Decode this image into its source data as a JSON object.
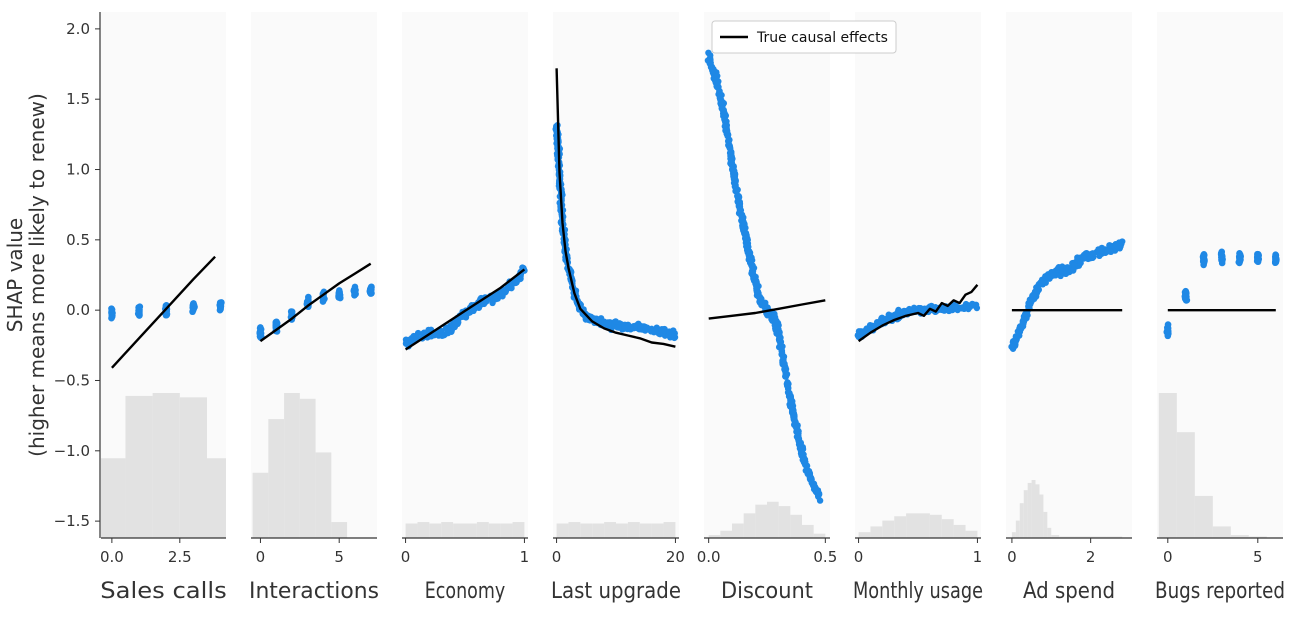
{
  "chart_data": {
    "type": "scatter",
    "title": "",
    "ylabel_lines": [
      "SHAP value",
      "(higher means more likely to renew)"
    ],
    "ylim": [
      -1.62,
      2.12
    ],
    "yticks": [
      2.0,
      1.5,
      1.0,
      0.5,
      0.0,
      -0.5,
      -1.0,
      -1.5
    ],
    "ytick_labels": [
      "2.0",
      "1.5",
      "1.0",
      "0.5",
      "0.0",
      "−0.5",
      "−1.0",
      "−1.5"
    ],
    "legend": {
      "label": "True causal effects",
      "location": "top"
    },
    "colors": {
      "points": "#1f88e5",
      "causal_line": "#000000",
      "histogram": "#e2e2e2",
      "panel_bg": "#fafafa",
      "axis": "#333333"
    },
    "panels": [
      {
        "feature": "Sales calls",
        "xlim": [
          -0.4,
          4.2
        ],
        "xticks": [
          0,
          2.5
        ],
        "xtick_labels": [
          "0.0",
          "2.5"
        ],
        "hist_edges": [
          -0.5,
          0.5,
          1.5,
          2.5,
          3.5,
          4.5
        ],
        "hist_heights": [
          0.55,
          0.98,
          1.0,
          0.97,
          0.55
        ],
        "points": [
          [
            0,
            -0.02
          ],
          [
            1,
            -0.01
          ],
          [
            2,
            0.0
          ],
          [
            3,
            0.02
          ],
          [
            4,
            0.04
          ]
        ],
        "point_style": "clusters",
        "causal": [
          [
            0,
            -0.41
          ],
          [
            1,
            -0.2
          ],
          [
            2,
            0.01
          ],
          [
            3,
            0.22
          ],
          [
            3.8,
            0.38
          ]
        ]
      },
      {
        "feature": "Interactions",
        "xlim": [
          -0.6,
          7.4
        ],
        "xticks": [
          0,
          5
        ],
        "xtick_labels": [
          "0",
          "5"
        ],
        "hist_edges": [
          -0.5,
          0.5,
          1.5,
          2.5,
          3.5,
          4.5,
          5.5
        ],
        "hist_heights": [
          0.45,
          0.82,
          1.0,
          0.96,
          0.59,
          0.11
        ],
        "points": [
          [
            0,
            -0.17
          ],
          [
            1,
            -0.12
          ],
          [
            2,
            -0.04
          ],
          [
            3,
            0.05
          ],
          [
            4,
            0.09
          ],
          [
            5,
            0.11
          ],
          [
            6,
            0.13
          ],
          [
            7,
            0.14
          ]
        ],
        "point_style": "clusters",
        "causal": [
          [
            0,
            -0.22
          ],
          [
            1,
            -0.14
          ],
          [
            2,
            -0.06
          ],
          [
            3,
            0.03
          ],
          [
            4,
            0.11
          ],
          [
            5,
            0.19
          ],
          [
            6,
            0.26
          ],
          [
            7,
            0.33
          ]
        ]
      },
      {
        "feature": "Economy",
        "xlim": [
          -0.03,
          1.03
        ],
        "xticks": [
          0,
          1
        ],
        "xtick_labels": [
          "0",
          "1"
        ],
        "hist_edges": [
          0.0,
          0.1,
          0.2,
          0.3,
          0.4,
          0.5,
          0.6,
          0.7,
          0.8,
          0.9,
          1.0
        ],
        "hist_heights": [
          0.1,
          0.11,
          0.1,
          0.11,
          0.1,
          0.1,
          0.11,
          0.1,
          0.1,
          0.11
        ],
        "points": [
          [
            0,
            -0.24
          ],
          [
            0.1,
            -0.19
          ],
          [
            0.2,
            -0.17
          ],
          [
            0.3,
            -0.16
          ],
          [
            0.4,
            -0.12
          ],
          [
            0.45,
            -0.05
          ],
          [
            0.55,
            0.01
          ],
          [
            0.65,
            0.07
          ],
          [
            0.75,
            0.09
          ],
          [
            0.85,
            0.15
          ],
          [
            0.95,
            0.22
          ],
          [
            1.0,
            0.3
          ]
        ],
        "point_style": "band",
        "causal": [
          [
            0,
            -0.28
          ],
          [
            0.2,
            -0.17
          ],
          [
            0.4,
            -0.06
          ],
          [
            0.6,
            0.05
          ],
          [
            0.8,
            0.16
          ],
          [
            1.0,
            0.29
          ]
        ]
      },
      {
        "feature": "Last upgrade",
        "xlim": [
          -0.6,
          20.6
        ],
        "xticks": [
          0,
          20
        ],
        "xtick_labels": [
          "0",
          "20"
        ],
        "hist_edges": [
          0,
          2,
          4,
          6,
          8,
          10,
          12,
          14,
          16,
          18,
          20
        ],
        "hist_heights": [
          0.1,
          0.11,
          0.1,
          0.1,
          0.11,
          0.1,
          0.11,
          0.1,
          0.1,
          0.11
        ],
        "points": [
          [
            0,
            1.35
          ],
          [
            0.5,
            0.95
          ],
          [
            1,
            0.62
          ],
          [
            1.5,
            0.42
          ],
          [
            2,
            0.3
          ],
          [
            3,
            0.12
          ],
          [
            4,
            0.01
          ],
          [
            5,
            -0.04
          ],
          [
            6,
            -0.07
          ],
          [
            8,
            -0.1
          ],
          [
            10,
            -0.11
          ],
          [
            12,
            -0.12
          ],
          [
            14,
            -0.13
          ],
          [
            16,
            -0.14
          ],
          [
            18,
            -0.15
          ],
          [
            20,
            -0.18
          ]
        ],
        "point_style": "band",
        "causal": [
          [
            0,
            1.72
          ],
          [
            0.5,
            0.98
          ],
          [
            1,
            0.62
          ],
          [
            1.5,
            0.42
          ],
          [
            2,
            0.3
          ],
          [
            3,
            0.12
          ],
          [
            4,
            0.01
          ],
          [
            6,
            -0.08
          ],
          [
            8,
            -0.13
          ],
          [
            10,
            -0.16
          ],
          [
            12,
            -0.18
          ],
          [
            14,
            -0.2
          ],
          [
            16,
            -0.23
          ],
          [
            18,
            -0.24
          ],
          [
            20,
            -0.26
          ]
        ],
        "causal_smooth": true
      },
      {
        "feature": "Discount",
        "xlim": [
          -0.02,
          0.52
        ],
        "xticks": [
          0,
          0.5
        ],
        "xtick_labels": [
          "0.0",
          "0.5"
        ],
        "hist_edges": [
          0.0,
          0.05,
          0.1,
          0.15,
          0.2,
          0.25,
          0.3,
          0.35,
          0.4,
          0.45,
          0.5
        ],
        "hist_heights": [
          0.02,
          0.05,
          0.1,
          0.17,
          0.23,
          0.25,
          0.22,
          0.16,
          0.09,
          0.03
        ],
        "points": [
          [
            0.0,
            1.8
          ],
          [
            0.03,
            1.65
          ],
          [
            0.06,
            1.45
          ],
          [
            0.09,
            1.15
          ],
          [
            0.12,
            0.85
          ],
          [
            0.15,
            0.58
          ],
          [
            0.18,
            0.35
          ],
          [
            0.21,
            0.12
          ],
          [
            0.24,
            0.02
          ],
          [
            0.26,
            -0.02
          ],
          [
            0.28,
            -0.05
          ],
          [
            0.3,
            -0.18
          ],
          [
            0.33,
            -0.45
          ],
          [
            0.36,
            -0.72
          ],
          [
            0.39,
            -0.95
          ],
          [
            0.42,
            -1.12
          ],
          [
            0.45,
            -1.25
          ],
          [
            0.48,
            -1.35
          ]
        ],
        "point_style": "band",
        "causal": [
          [
            0.0,
            -0.06
          ],
          [
            0.1,
            -0.04
          ],
          [
            0.2,
            -0.02
          ],
          [
            0.3,
            0.01
          ],
          [
            0.4,
            0.04
          ],
          [
            0.5,
            0.07
          ]
        ]
      },
      {
        "feature": "Monthly usage",
        "xlim": [
          -0.03,
          1.03
        ],
        "xticks": [
          0,
          1
        ],
        "xtick_labels": [
          "0",
          "1"
        ],
        "hist_edges": [
          0.0,
          0.1,
          0.2,
          0.3,
          0.4,
          0.5,
          0.6,
          0.7,
          0.8,
          0.9,
          1.0
        ],
        "hist_heights": [
          0.04,
          0.08,
          0.12,
          0.15,
          0.17,
          0.17,
          0.16,
          0.13,
          0.09,
          0.05
        ],
        "points": [
          [
            0,
            -0.18
          ],
          [
            0.1,
            -0.13
          ],
          [
            0.2,
            -0.08
          ],
          [
            0.3,
            -0.04
          ],
          [
            0.4,
            -0.02
          ],
          [
            0.5,
            0.0
          ],
          [
            0.6,
            0.0
          ],
          [
            0.7,
            0.01
          ],
          [
            0.8,
            0.02
          ],
          [
            0.9,
            0.02
          ],
          [
            1.0,
            0.03
          ]
        ],
        "point_style": "band",
        "causal": [
          [
            0,
            -0.22
          ],
          [
            0.1,
            -0.16
          ],
          [
            0.2,
            -0.11
          ],
          [
            0.3,
            -0.07
          ],
          [
            0.4,
            -0.04
          ],
          [
            0.5,
            -0.02
          ],
          [
            0.55,
            -0.04
          ],
          [
            0.6,
            0.01
          ],
          [
            0.65,
            -0.01
          ],
          [
            0.7,
            0.05
          ],
          [
            0.75,
            0.03
          ],
          [
            0.8,
            0.07
          ],
          [
            0.85,
            0.05
          ],
          [
            0.9,
            0.11
          ],
          [
            0.95,
            0.13
          ],
          [
            1.0,
            0.18
          ]
        ]
      },
      {
        "feature": "Ad spend",
        "xlim": [
          -0.15,
          3.05
        ],
        "xticks": [
          0,
          2
        ],
        "xtick_labels": [
          "0",
          "2"
        ],
        "hist_edges": [
          0.0,
          0.1,
          0.2,
          0.3,
          0.4,
          0.5,
          0.6,
          0.7,
          0.8,
          0.9,
          1.0,
          1.2,
          1.6,
          2.0,
          2.4,
          2.8
        ],
        "hist_heights": [
          0.04,
          0.12,
          0.24,
          0.33,
          0.38,
          0.4,
          0.37,
          0.3,
          0.18,
          0.07,
          0.02,
          0.01,
          0.01,
          0.01,
          0.01
        ],
        "points": [
          [
            0.0,
            -0.27
          ],
          [
            0.1,
            -0.22
          ],
          [
            0.2,
            -0.15
          ],
          [
            0.3,
            -0.08
          ],
          [
            0.4,
            0.0
          ],
          [
            0.5,
            0.07
          ],
          [
            0.7,
            0.18
          ],
          [
            0.9,
            0.24
          ],
          [
            1.2,
            0.28
          ],
          [
            1.5,
            0.29
          ],
          [
            1.7,
            0.35
          ],
          [
            2.0,
            0.4
          ],
          [
            2.4,
            0.43
          ],
          [
            2.8,
            0.47
          ]
        ],
        "point_style": "band",
        "causal": [
          [
            0.0,
            0.0
          ],
          [
            2.8,
            0.0
          ]
        ]
      },
      {
        "feature": "Bugs reported",
        "xlim": [
          -0.6,
          6.4
        ],
        "xticks": [
          0,
          5
        ],
        "xtick_labels": [
          "0",
          "5"
        ],
        "hist_edges": [
          -0.5,
          0.5,
          1.5,
          2.5,
          3.5,
          4.5,
          5.5
        ],
        "hist_heights": [
          1.0,
          0.73,
          0.29,
          0.08,
          0.02,
          0.01
        ],
        "points": [
          [
            0,
            -0.15
          ],
          [
            1,
            0.11
          ],
          [
            2,
            0.36
          ],
          [
            3,
            0.37
          ],
          [
            4,
            0.37
          ],
          [
            5,
            0.37
          ],
          [
            6,
            0.36
          ]
        ],
        "point_style": "clusters",
        "causal": [
          [
            0,
            0.0
          ],
          [
            6,
            0.0
          ]
        ]
      }
    ]
  }
}
